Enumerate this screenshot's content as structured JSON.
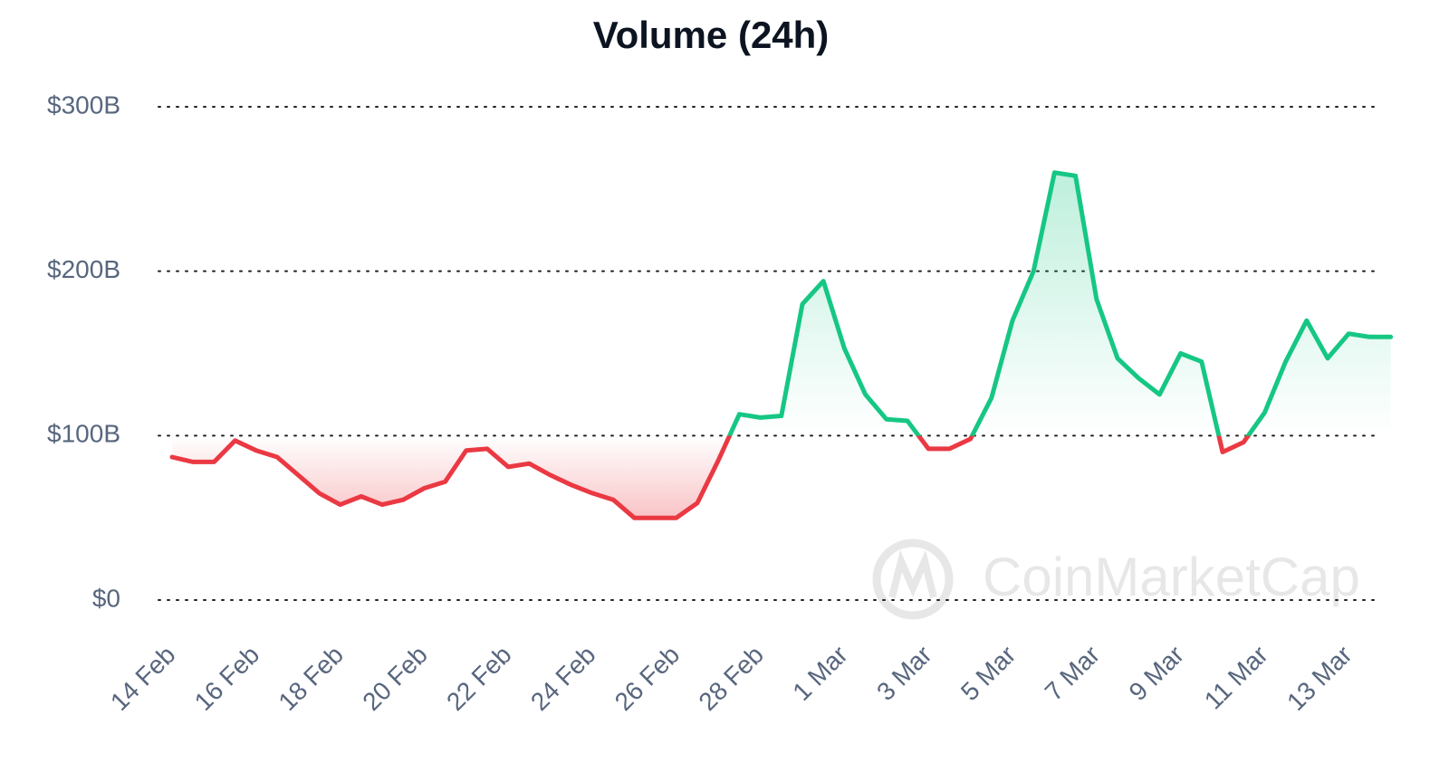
{
  "chart_data": {
    "type": "line",
    "title": "Volume (24h)",
    "watermark": "CoinMarketCap",
    "categories": [
      "14 Feb",
      null,
      null,
      null,
      "16 Feb",
      null,
      null,
      null,
      "18 Feb",
      null,
      null,
      null,
      "20 Feb",
      null,
      null,
      null,
      "22 Feb",
      null,
      null,
      null,
      "24 Feb",
      null,
      null,
      null,
      "26 Feb",
      null,
      null,
      null,
      "28 Feb",
      null,
      null,
      null,
      "1 Mar",
      null,
      null,
      null,
      "3 Mar",
      null,
      null,
      null,
      "5 Mar",
      null,
      null,
      null,
      "7 Mar",
      null,
      null,
      null,
      "9 Mar",
      null,
      null,
      null,
      "11 Mar",
      null,
      null,
      null,
      "13 Mar",
      null,
      null
    ],
    "values": [
      87,
      84,
      84,
      97,
      91,
      87,
      76,
      65,
      58,
      63,
      58,
      61,
      68,
      72,
      91,
      92,
      81,
      83,
      76,
      70,
      65,
      61,
      50,
      50,
      50,
      59,
      85,
      113,
      111,
      112,
      180,
      194,
      153,
      125,
      110,
      109,
      92,
      92,
      98,
      123,
      170,
      200,
      260,
      258,
      183,
      147,
      135,
      125,
      150,
      145,
      90,
      96,
      114,
      145,
      170,
      147,
      162,
      160,
      160
    ],
    "baseline": 100,
    "color_above": "#16c784",
    "color_below": "#ea3943",
    "ylim": [
      0,
      300
    ],
    "yticks": [
      {
        "value": 0,
        "label": "$0"
      },
      {
        "value": 100,
        "label": "$100B"
      },
      {
        "value": 200,
        "label": "$200B"
      },
      {
        "value": 300,
        "label": "$300B"
      }
    ],
    "grid": true
  }
}
